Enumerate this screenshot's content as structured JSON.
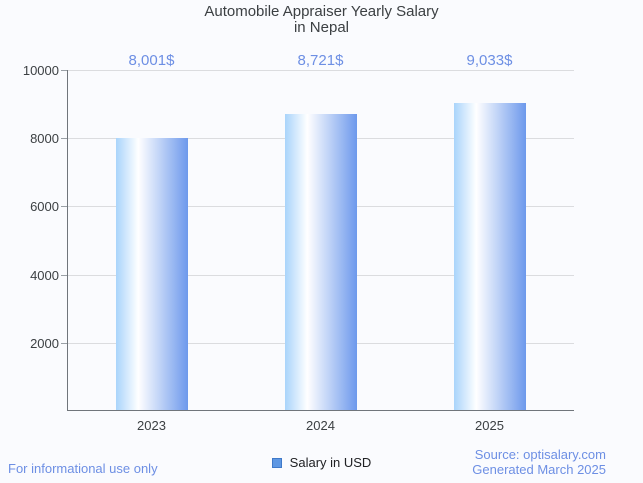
{
  "title": {
    "line1": "Automobile Appraiser Yearly Salary",
    "line2": "in Nepal"
  },
  "chart_data": {
    "type": "bar",
    "title": "Automobile Appraiser Yearly Salary in Nepal",
    "categories": [
      "2023",
      "2024",
      "2025"
    ],
    "series": [
      {
        "name": "Salary in USD",
        "values": [
          8001,
          8721,
          9033
        ]
      }
    ],
    "value_labels": [
      "8,001$",
      "8,721$",
      "9,033$"
    ],
    "xlabel": "",
    "ylabel": "",
    "ylim": [
      0,
      10000
    ],
    "yticks": [
      2000,
      4000,
      6000,
      8000,
      10000
    ],
    "grid": true,
    "legend_position": "bottom"
  },
  "legend": {
    "label": "Salary in USD"
  },
  "footer": {
    "left": "For informational use only",
    "source": "Source: optisalary.com",
    "generated": "Generated March 2025"
  },
  "colors": {
    "background": "#fafbfe",
    "bar_gradient_left": "#a9d4fb",
    "bar_gradient_mid": "#ffffff",
    "bar_gradient_right": "#6d99ec",
    "label_blue": "#6d8fe4",
    "title_text": "#3c4043",
    "axis_text": "#3c4043",
    "gridline": "#dbdcdf",
    "tick": "#9aa0a6",
    "axis_line": "#70757b",
    "legend_marker_fill": "#5e97e3",
    "legend_marker_border": "#3f79c9"
  }
}
